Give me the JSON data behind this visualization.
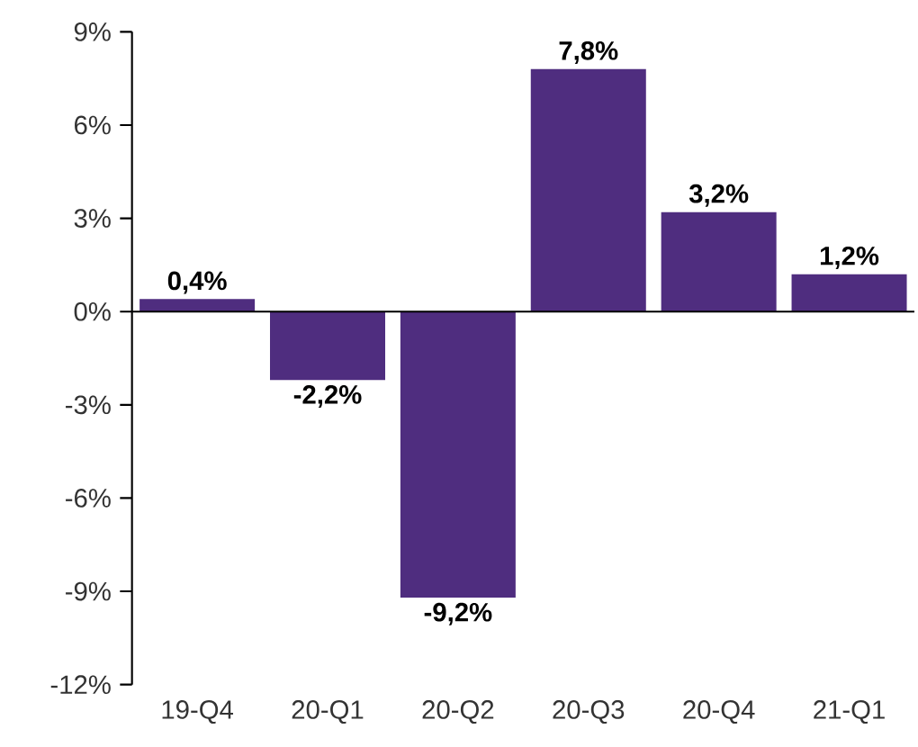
{
  "chart_data": {
    "type": "bar",
    "categories": [
      "19-Q4",
      "20-Q1",
      "20-Q2",
      "20-Q3",
      "20-Q4",
      "21-Q1"
    ],
    "values": [
      0.4,
      -2.2,
      -9.2,
      7.8,
      3.2,
      1.2
    ],
    "value_labels": [
      "0,4%",
      "-2,2%",
      "-9,2%",
      "7,8%",
      "3,2%",
      "1,2%"
    ],
    "color": "#4f2d7f",
    "ylim": [
      -12,
      9
    ],
    "yticks": [
      {
        "value": -12,
        "label": "-12%"
      },
      {
        "value": -9,
        "label": "-9%"
      },
      {
        "value": -6,
        "label": "-6%"
      },
      {
        "value": -3,
        "label": "-3%"
      },
      {
        "value": 0,
        "label": "0%"
      },
      {
        "value": 3,
        "label": "3%"
      },
      {
        "value": 6,
        "label": "6%"
      },
      {
        "value": 9,
        "label": "9%"
      }
    ]
  }
}
